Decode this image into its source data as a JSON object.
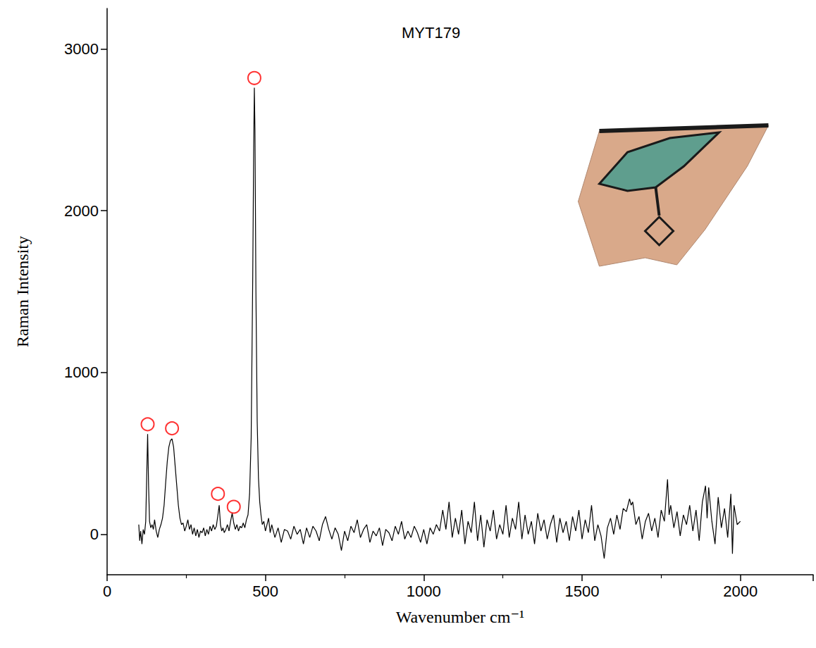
{
  "chart_data": {
    "type": "line",
    "title": "MYT179",
    "x_label": "Wavenumber cm⁻¹",
    "y_label": "Raman Intensity",
    "xlim": [
      0,
      2230
    ],
    "xticks": [
      0,
      500,
      1000,
      1500,
      2000
    ],
    "ylim": [
      -250,
      3250
    ],
    "yticks": [
      0,
      1000,
      2000,
      3000
    ],
    "grid": false,
    "series": [
      {
        "type": "line",
        "color": "#000000",
        "line_style": "solid",
        "x": [
          100,
          103,
          106,
          110,
          114,
          118,
          122,
          125,
          128,
          131,
          134,
          138,
          142,
          146,
          150,
          155,
          160,
          165,
          170,
          175,
          180,
          185,
          190,
          195,
          200,
          205,
          210,
          215,
          220,
          225,
          230,
          235,
          240,
          245,
          250,
          255,
          260,
          265,
          270,
          275,
          280,
          285,
          290,
          295,
          300,
          305,
          310,
          315,
          320,
          325,
          330,
          335,
          340,
          345,
          350,
          354,
          358,
          362,
          366,
          370,
          375,
          380,
          385,
          390,
          395,
          400,
          405,
          410,
          415,
          420,
          425,
          430,
          435,
          440,
          445,
          450,
          455,
          460,
          463,
          465,
          467,
          470,
          474,
          478,
          482,
          486,
          490,
          495,
          500,
          505,
          510,
          515,
          520,
          530,
          540,
          550,
          560,
          570,
          580,
          590,
          600,
          610,
          620,
          630,
          640,
          650,
          660,
          670,
          680,
          690,
          700,
          710,
          720,
          730,
          740,
          750,
          760,
          770,
          780,
          790,
          800,
          810,
          820,
          830,
          840,
          850,
          860,
          870,
          880,
          890,
          900,
          910,
          920,
          930,
          940,
          950,
          960,
          970,
          980,
          990,
          1000,
          1010,
          1020,
          1030,
          1040,
          1050,
          1060,
          1070,
          1080,
          1090,
          1100,
          1110,
          1120,
          1130,
          1140,
          1150,
          1160,
          1170,
          1180,
          1190,
          1200,
          1210,
          1220,
          1230,
          1240,
          1250,
          1260,
          1270,
          1280,
          1290,
          1300,
          1310,
          1320,
          1330,
          1340,
          1350,
          1360,
          1370,
          1380,
          1390,
          1400,
          1410,
          1420,
          1430,
          1440,
          1450,
          1460,
          1470,
          1480,
          1490,
          1500,
          1510,
          1520,
          1530,
          1540,
          1550,
          1560,
          1570,
          1580,
          1590,
          1600,
          1610,
          1620,
          1630,
          1640,
          1650,
          1655,
          1660,
          1670,
          1680,
          1690,
          1700,
          1710,
          1720,
          1730,
          1740,
          1750,
          1760,
          1770,
          1775,
          1780,
          1790,
          1800,
          1810,
          1820,
          1830,
          1840,
          1850,
          1860,
          1870,
          1880,
          1890,
          1895,
          1900,
          1910,
          1920,
          1930,
          1940,
          1950,
          1960,
          1970,
          1975,
          1980,
          1990,
          2000
        ],
        "values": [
          60,
          -40,
          20,
          -60,
          30,
          0,
          80,
          350,
          620,
          300,
          80,
          40,
          60,
          30,
          90,
          20,
          -20,
          30,
          60,
          100,
          180,
          320,
          450,
          540,
          580,
          590,
          540,
          420,
          300,
          180,
          100,
          60,
          70,
          20,
          50,
          90,
          30,
          60,
          0,
          40,
          -10,
          30,
          -20,
          20,
          10,
          40,
          -10,
          30,
          0,
          50,
          20,
          60,
          30,
          50,
          120,
          180,
          60,
          20,
          40,
          10,
          30,
          60,
          20,
          80,
          130,
          70,
          30,
          60,
          20,
          50,
          40,
          70,
          40,
          90,
          120,
          250,
          600,
          1600,
          2400,
          2760,
          2500,
          1500,
          700,
          350,
          200,
          120,
          60,
          80,
          20,
          60,
          100,
          10,
          60,
          -20,
          40,
          -50,
          30,
          20,
          -30,
          50,
          0,
          30,
          -60,
          40,
          -20,
          50,
          20,
          -40,
          60,
          110,
          30,
          -30,
          40,
          0,
          -100,
          20,
          -40,
          50,
          10,
          90,
          -20,
          30,
          60,
          -50,
          20,
          -10,
          40,
          -70,
          30,
          10,
          -40,
          50,
          0,
          80,
          -30,
          20,
          -20,
          50,
          10,
          -50,
          30,
          -60,
          40,
          0,
          60,
          20,
          150,
          30,
          200,
          -20,
          100,
          0,
          150,
          -60,
          80,
          10,
          200,
          -40,
          120,
          -80,
          90,
          20,
          150,
          -30,
          60,
          0,
          180,
          -20,
          100,
          30,
          200,
          -30,
          120,
          0,
          80,
          -60,
          130,
          20,
          90,
          -30,
          60,
          120,
          -50,
          100,
          10,
          80,
          -40,
          110,
          20,
          150,
          -30,
          90,
          10,
          180,
          -40,
          60,
          -10,
          -150,
          40,
          100,
          0,
          120,
          30,
          160,
          140,
          220,
          180,
          200,
          60,
          110,
          -30,
          80,
          130,
          20,
          100,
          -20,
          150,
          80,
          340,
          120,
          180,
          40,
          140,
          -10,
          120,
          60,
          180,
          20,
          150,
          -40,
          200,
          300,
          100,
          290,
          80,
          -60,
          230,
          40,
          160,
          -20,
          250,
          -120,
          180,
          60,
          80
        ]
      },
      {
        "type": "scatter",
        "color": "#ff0000",
        "marker": "open_circle",
        "x": [
          128,
          205,
          350,
          400,
          465
        ],
        "values": [
          680,
          655,
          250,
          170,
          2820
        ]
      }
    ]
  }
}
